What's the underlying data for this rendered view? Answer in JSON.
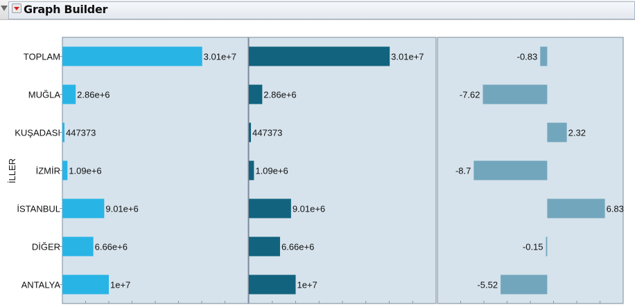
{
  "window": {
    "title": "Graph Builder"
  },
  "chart_data": {
    "type": "bar",
    "orientation": "horizontal",
    "ylabel": "İLLER",
    "categories": [
      "TOPLAM",
      "MUĞLA",
      "KUŞADASI",
      "İZMİR",
      "İSTANBUL",
      "DİĞER",
      "ANTALYA"
    ],
    "panels": [
      {
        "values": [
          30100000,
          2860000,
          447373,
          1090000,
          9010000,
          6660000,
          10000000
        ],
        "labels": [
          "3.01e+7",
          "2.86e+6",
          "447373",
          "1.09e+6",
          "9.01e+6",
          "6.66e+6",
          "1e+7"
        ],
        "xlim": [
          0,
          40000000
        ],
        "color": "#29b4e6"
      },
      {
        "values": [
          30100000,
          2860000,
          447373,
          1090000,
          9010000,
          6660000,
          10000000
        ],
        "labels": [
          "3.01e+7",
          "2.86e+6",
          "447373",
          "1.09e+6",
          "9.01e+6",
          "6.66e+6",
          "1e+7"
        ],
        "xlim": [
          0,
          40000000
        ],
        "color": "#12637e"
      },
      {
        "values": [
          -0.83,
          -7.62,
          2.32,
          -8.7,
          6.83,
          -0.15,
          -5.52
        ],
        "labels": [
          "-0.83",
          "-7.62",
          "2.32",
          "-8.7",
          "6.83",
          "-0.15",
          "-5.52"
        ],
        "xlim": [
          -13,
          9
        ],
        "color": "#72a6bd"
      }
    ],
    "grid": false
  }
}
